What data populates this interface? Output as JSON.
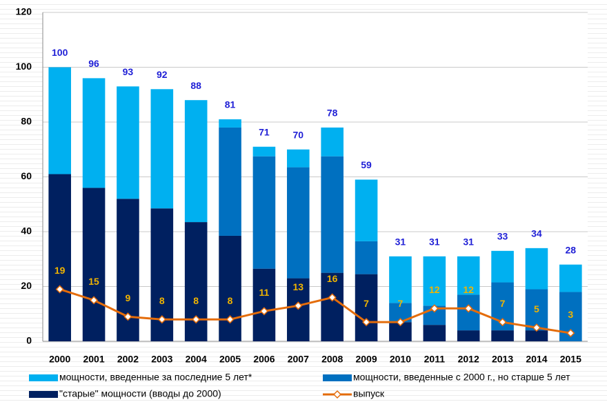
{
  "chart_data": {
    "type": "bar",
    "stacked": true,
    "categories": [
      "2000",
      "2001",
      "2002",
      "2003",
      "2004",
      "2005",
      "2006",
      "2007",
      "2008",
      "2009",
      "2010",
      "2011",
      "2012",
      "2013",
      "2014",
      "2015"
    ],
    "series": [
      {
        "name": "мощности, введенные за последние 5 лет*",
        "color": "#00b0f0",
        "values": [
          39,
          40,
          41,
          43.5,
          44.5,
          3,
          3.5,
          6.5,
          10.5,
          22.5,
          17,
          18,
          14,
          11.5,
          15,
          10
        ]
      },
      {
        "name": "мощности, введенные с 2000 г., но старше 5 лет",
        "color": "#0070c0",
        "values": [
          0,
          0,
          0,
          0,
          0,
          39.5,
          41,
          40.5,
          42.5,
          12,
          7,
          7,
          13,
          17.5,
          15,
          18
        ]
      },
      {
        "name": "\"старые\" мощности (вводы до 2000)",
        "color": "#002060",
        "values": [
          61,
          56,
          52,
          48.5,
          43.5,
          38.5,
          26.5,
          23,
          25,
          24.5,
          7,
          6,
          4,
          4,
          4,
          0
        ]
      },
      {
        "name": "выпуск",
        "color": "#e46c0a",
        "type": "line",
        "values": [
          19,
          15,
          9,
          8,
          8,
          8,
          11,
          13,
          16,
          7,
          7,
          12,
          12,
          7,
          5,
          3
        ]
      }
    ],
    "total_labels": [
      100,
      96,
      93,
      92,
      88,
      81,
      71,
      70,
      78,
      59,
      31,
      31,
      31,
      33,
      34,
      28
    ],
    "total_label_color": "#1f1fd6",
    "line_label_color": "#f0b400",
    "ylim": [
      0,
      120
    ],
    "yticks": [
      0,
      20,
      40,
      60,
      80,
      100,
      120
    ],
    "grid": true
  }
}
